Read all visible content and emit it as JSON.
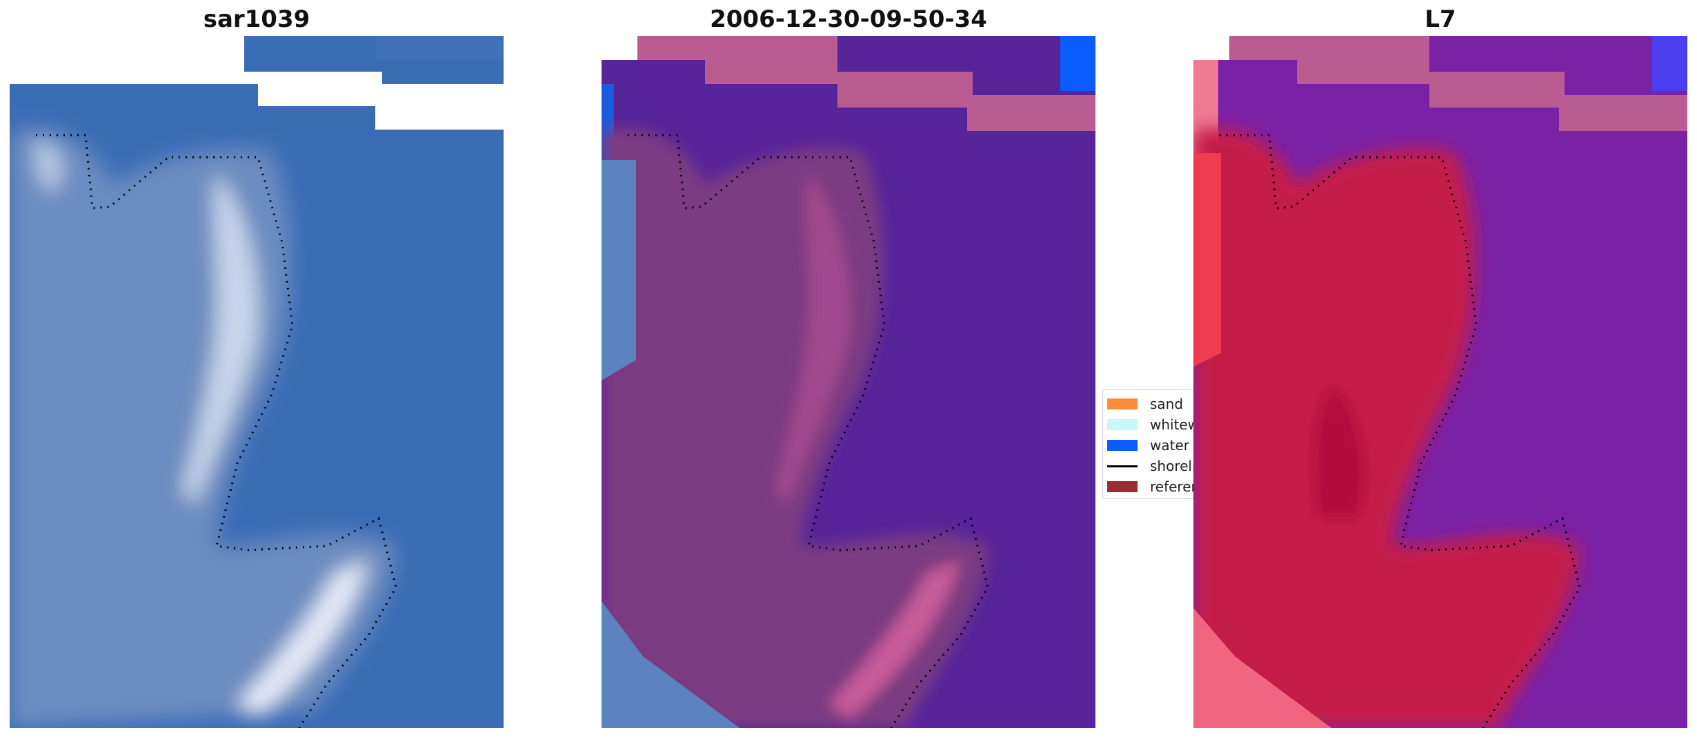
{
  "panels": [
    {
      "title": "sar1039"
    },
    {
      "title": "2006-12-30-09-50-34"
    },
    {
      "title": "L7"
    }
  ],
  "legend": {
    "items": [
      {
        "label": "sand",
        "color": "#ff8c3a"
      },
      {
        "label": "whitewater",
        "color": "#c8f8f8"
      },
      {
        "label": "water",
        "color": "#0a5cff"
      },
      {
        "label": "shoreline",
        "color": "#000000"
      },
      {
        "label": "reference",
        "color": "#9a2c34"
      }
    ]
  },
  "colors": {
    "sea_rgb": "#3a6cb4",
    "land_rgb": "#6a8cc0",
    "sea_class": "#58249a",
    "land_class": "#7a3a82",
    "mask_pink": "#b85c92",
    "sea_index": "#7a22a6",
    "land_index": "#c41e4a"
  }
}
